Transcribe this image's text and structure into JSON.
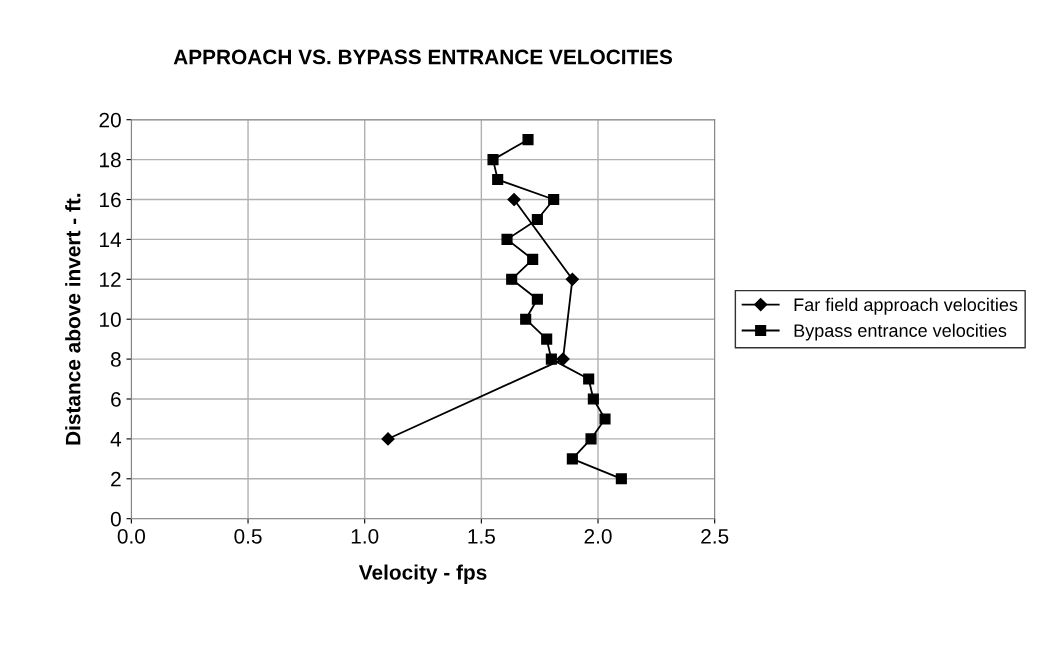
{
  "chart_data": {
    "type": "line",
    "title": "APPROACH VS. BYPASS ENTRANCE VELOCITIES",
    "xlabel": "Velocity - fps",
    "ylabel": "Distance above invert - ft.",
    "xlim": [
      0,
      2.5
    ],
    "xticks": [
      {
        "value": 0,
        "label": "0.0"
      },
      0.5,
      {
        "value": 1,
        "label": "1.0"
      },
      1.5,
      {
        "value": 2,
        "label": "2.0"
      },
      2.5
    ],
    "ylim": [
      0,
      20
    ],
    "yticks": [
      0,
      2,
      4,
      6,
      8,
      10,
      12,
      14,
      16,
      18,
      20
    ],
    "grid": true,
    "legend": "right",
    "series": [
      {
        "name": "Far field approach velocities",
        "color": "#000000",
        "marker": "diamond",
        "x": [
          1.64,
          1.89,
          1.85,
          1.1
        ],
        "values": [
          16,
          12,
          8,
          4
        ]
      },
      {
        "name": "Bypass entrance velocities",
        "color": "#000000",
        "marker": "square",
        "x": [
          1.7,
          1.55,
          1.57,
          1.81,
          1.74,
          1.61,
          1.72,
          1.63,
          1.74,
          1.69,
          1.78,
          1.8,
          1.96,
          1.98,
          2.03,
          1.97,
          1.89,
          2.1
        ],
        "values": [
          19,
          18,
          17,
          16,
          15,
          14,
          13,
          12,
          11,
          10,
          9,
          8,
          7,
          6,
          5,
          4,
          3,
          2
        ]
      }
    ]
  }
}
